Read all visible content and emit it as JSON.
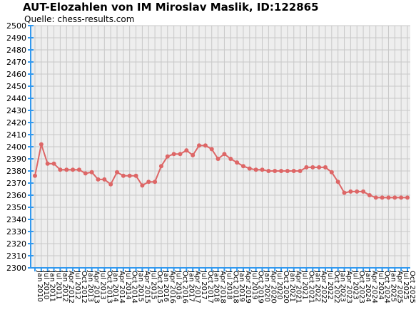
{
  "title": "AUT-Elozahlen von IM Miroslav Maslik, ID:122865",
  "subtitle": "Quelle: chess-results.com",
  "colors": {
    "line": "#dd6666",
    "axis": "#3399ee",
    "grid": "#c8c8c8",
    "plot_bg": "#eeeeee"
  },
  "chart_data": {
    "type": "line",
    "title": "AUT-Elozahlen von IM Miroslav Maslik, ID:122865",
    "xlabel": "",
    "ylabel": "",
    "ylim": [
      2300,
      2500
    ],
    "yticks": [
      2300,
      2310,
      2320,
      2330,
      2340,
      2350,
      2360,
      2370,
      2380,
      2390,
      2400,
      2410,
      2420,
      2430,
      2440,
      2450,
      2460,
      2470,
      2480,
      2490,
      2500
    ],
    "grid": true,
    "x_tick_labels": [
      "Jan 2010",
      "Jul 2010",
      "Jan 2011",
      "Jul 2011",
      "Jan 2012",
      "Apr 2012",
      "Jul 2012",
      "Oct 2012",
      "Jan 2013",
      "Apr 2013",
      "Jul 2013",
      "Oct 2013",
      "Jan 2014",
      "Apr 2014",
      "Jul 2014",
      "Oct 2014",
      "Jan 2015",
      "Apr 2015",
      "Jul 2015",
      "Oct 2015",
      "Jan 2016",
      "Apr 2016",
      "Jul 2016",
      "Oct 2016",
      "Jan 2017",
      "Apr 2017",
      "Jul 2017",
      "Oct 2017",
      "Jan 2018",
      "Apr 2018",
      "Jul 2018",
      "Oct 2018",
      "Jan 2019",
      "Apr 2019",
      "Jul 2019",
      "Oct 2019",
      "Jan 2020",
      "Apr 2020",
      "Jul 2020",
      "Oct 2020",
      "Jan 2021",
      "Apr 2021",
      "Jul 2021",
      "Oct 2021",
      "Jan 2022",
      "Apr 2022",
      "Jul 2022",
      "Oct 2022",
      "Jan 2023",
      "Apr 2023",
      "Jul 2023",
      "Oct 2023",
      "Jan 2024",
      "Apr 2024",
      "Jul 2024",
      "Oct 2024",
      "Jan 2025",
      "Apr 2025",
      "Jul 2025",
      "Oct 2025"
    ],
    "values": [
      2376,
      2402,
      2386,
      2386,
      2381,
      2381,
      2381,
      2381,
      2378,
      2379,
      2373,
      2373,
      2369,
      2379,
      2376,
      2376,
      2376,
      2368,
      2371,
      2371,
      2384,
      2392,
      2394,
      2394,
      2397,
      2393,
      2401,
      2401,
      2398,
      2390,
      2394,
      2390,
      2387,
      2384,
      2382,
      2381,
      2381,
      2380,
      2380,
      2380,
      2380,
      2380,
      2380,
      2383,
      2383,
      2383,
      2383,
      2379,
      2371,
      2362,
      2363,
      2363,
      2363,
      2360,
      2358,
      2358,
      2358,
      2358,
      2358,
      2358
    ]
  }
}
